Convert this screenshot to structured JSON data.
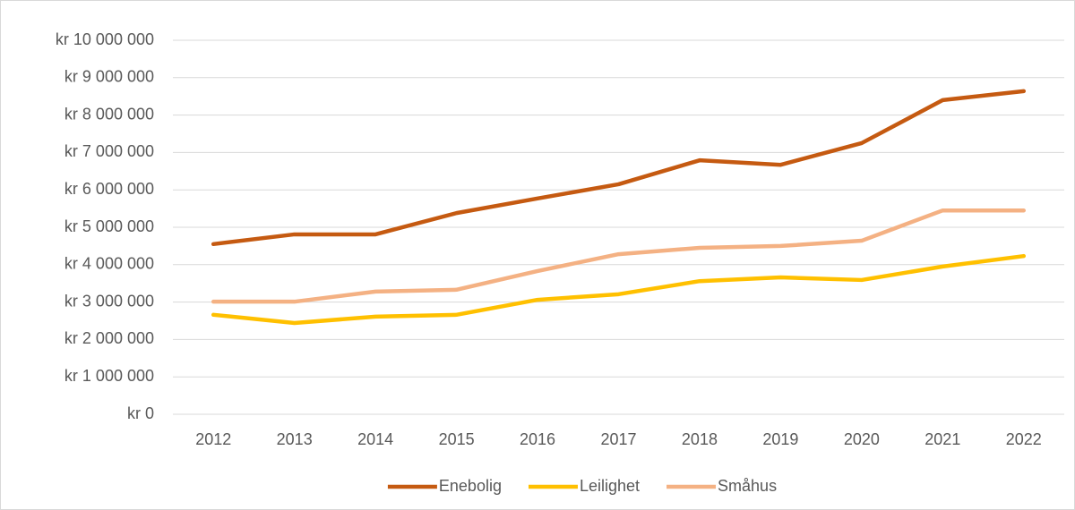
{
  "chart_data": {
    "type": "line",
    "categories": [
      "2012",
      "2013",
      "2014",
      "2015",
      "2016",
      "2017",
      "2018",
      "2019",
      "2020",
      "2021",
      "2022"
    ],
    "series": [
      {
        "name": "Enebolig",
        "color": "#c55a11",
        "values": [
          4550000,
          4810000,
          4810000,
          5380000,
          5770000,
          6150000,
          6790000,
          6670000,
          7250000,
          8400000,
          8640000
        ]
      },
      {
        "name": "Leilighet",
        "color": "#ffc000",
        "values": [
          2660000,
          2440000,
          2610000,
          2660000,
          3060000,
          3210000,
          3560000,
          3660000,
          3590000,
          3950000,
          4230000
        ]
      },
      {
        "name": "Småhus",
        "color": "#f4b183",
        "values": [
          3010000,
          3010000,
          3280000,
          3330000,
          3830000,
          4280000,
          4450000,
          4500000,
          4640000,
          5450000,
          5450000
        ]
      }
    ],
    "ylim": [
      0,
      10000000
    ],
    "yticks": [
      {
        "value": 0,
        "label": "kr 0"
      },
      {
        "value": 1000000,
        "label": "kr 1 000 000"
      },
      {
        "value": 2000000,
        "label": "kr 2 000 000"
      },
      {
        "value": 3000000,
        "label": "kr 3 000 000"
      },
      {
        "value": 4000000,
        "label": "kr 4 000 000"
      },
      {
        "value": 5000000,
        "label": "kr 5 000 000"
      },
      {
        "value": 6000000,
        "label": "kr 6 000 000"
      },
      {
        "value": 7000000,
        "label": "kr 7 000 000"
      },
      {
        "value": 8000000,
        "label": "kr 8 000 000"
      },
      {
        "value": 9000000,
        "label": "kr 9 000 000"
      },
      {
        "value": 10000000,
        "label": "kr 10 000 000"
      }
    ],
    "grid": true,
    "legend": "bottom"
  }
}
